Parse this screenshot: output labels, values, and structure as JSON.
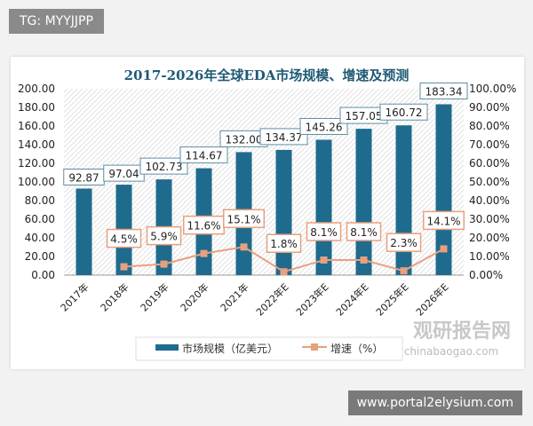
{
  "tag": "TG: MYYJJPP",
  "watermark": "www.portal2elysium.com",
  "logo": {
    "cn": "观研报告网",
    "en": "chinabaogao.com"
  },
  "chart_data": {
    "type": "bar+line",
    "title": "2017-2026年全球EDA市场规模、增速及预测",
    "categories": [
      "2017年",
      "2018年",
      "2019年",
      "2020年",
      "2021年",
      "2022年E",
      "2023年E",
      "2024年E",
      "2025年E",
      "2026年E"
    ],
    "series": [
      {
        "name": "市场规模（亿美元）",
        "type": "bar",
        "axis": "left",
        "color": "#1f6b8e",
        "values": [
          92.87,
          97.04,
          102.73,
          114.67,
          132.0,
          134.37,
          145.26,
          157.05,
          160.72,
          183.34
        ],
        "labels": [
          "92.87",
          "97.04",
          "102.73",
          "114.67",
          "132.00",
          "134.37",
          "145.26",
          "157.05",
          "160.72",
          "183.34"
        ]
      },
      {
        "name": "增速（%）",
        "type": "line",
        "axis": "right",
        "color": "#e8a07f",
        "values": [
          null,
          4.5,
          5.9,
          11.6,
          15.1,
          1.8,
          8.1,
          8.1,
          2.3,
          14.1
        ],
        "labels": [
          null,
          "4.5%",
          "5.9%",
          "11.6%",
          "15.1%",
          "1.8%",
          "8.1%",
          "8.1%",
          "2.3%",
          "14.1%"
        ]
      }
    ],
    "left_axis": {
      "ylim": [
        0,
        200
      ],
      "ticks": [
        "0.00",
        "20.00",
        "40.00",
        "60.00",
        "80.00",
        "100.00",
        "120.00",
        "140.00",
        "160.00",
        "180.00",
        "200.00"
      ]
    },
    "right_axis": {
      "ylim": [
        0,
        100
      ],
      "ticks": [
        "0.00%",
        "10.00%",
        "20.00%",
        "30.00%",
        "40.00%",
        "50.00%",
        "60.00%",
        "70.00%",
        "80.00%",
        "90.00%",
        "100.00%"
      ]
    },
    "legend": "bottom",
    "grid": false
  }
}
